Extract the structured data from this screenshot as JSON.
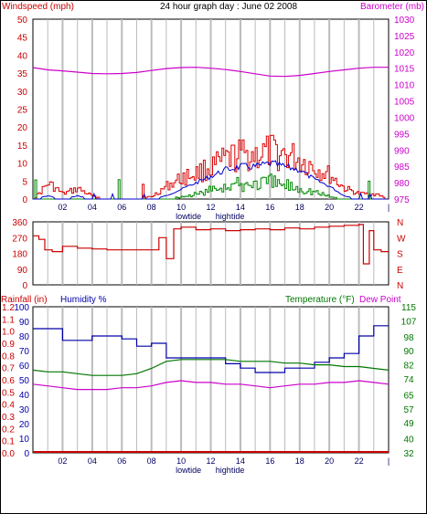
{
  "header": {
    "title": "24 hour graph day : June 02 2008",
    "left_label": "Windspeed (mph)",
    "right_label": "Barometer (mb)"
  },
  "labels": {
    "rain": "Rainfall (in)",
    "humidity": "Humidity %",
    "temperature": "Temperature (°F)",
    "dewpoint": "Dew Point"
  },
  "tide": {
    "low": "lowtide",
    "high": "hightide"
  },
  "colors": {
    "windspeed": "#dd0000",
    "gust": "#dd0000",
    "wind_avg": "#0000cc",
    "wind_low": "#008800",
    "barometer": "#cc00cc",
    "direction": "#cc0000",
    "humidity": "#0000aa",
    "temperature": "#007700",
    "dewpoint": "#cc00cc",
    "rain": "#cc0000",
    "grid": "#bbbbbb"
  },
  "chart_data": [
    {
      "type": "line",
      "name": "wind-barometer",
      "x_ticks": [
        "02",
        "04",
        "06",
        "08",
        "10",
        "12",
        "14",
        "16",
        "18",
        "20",
        "22",
        "|"
      ],
      "y_left": {
        "label": "Windspeed (mph)",
        "ticks": [
          0,
          5,
          10,
          15,
          20,
          25,
          30,
          35,
          40,
          45,
          50
        ],
        "range": [
          0,
          50
        ]
      },
      "y_right": {
        "label": "Barometer (mb)",
        "ticks": [
          975,
          980,
          985,
          990,
          995,
          1000,
          1005,
          1010,
          1015,
          1020,
          1025,
          1030
        ],
        "range": [
          975,
          1030
        ]
      },
      "hours": [
        0,
        1,
        2,
        3,
        4,
        5,
        6,
        7,
        8,
        9,
        10,
        11,
        12,
        13,
        14,
        15,
        16,
        17,
        18,
        19,
        20,
        21,
        22,
        23,
        24
      ],
      "barometer": [
        1015.2,
        1014.5,
        1014.2,
        1013.8,
        1013.4,
        1013.3,
        1013.4,
        1013.7,
        1014.3,
        1014.9,
        1015.2,
        1015.3,
        1015.0,
        1014.6,
        1014.0,
        1013.3,
        1012.6,
        1012.5,
        1012.8,
        1013.4,
        1014.0,
        1014.5,
        1015.0,
        1015.3,
        1015.3
      ],
      "wind_gust": [
        0,
        6,
        2,
        4,
        1,
        0,
        0,
        0,
        1,
        5,
        8,
        10,
        12,
        15,
        17,
        17,
        18,
        17,
        15,
        12,
        9,
        4,
        2,
        2,
        0
      ],
      "wind_avg": [
        0,
        1,
        0,
        1,
        0,
        0,
        0,
        0,
        0,
        1,
        3,
        5,
        7,
        9,
        10,
        10,
        11,
        10,
        9,
        6,
        4,
        1,
        0,
        0,
        0
      ],
      "wind_low": [
        0,
        0,
        0,
        0,
        0,
        0,
        0,
        0,
        0,
        0,
        1,
        2,
        4,
        6,
        6,
        7,
        7,
        6,
        5,
        3,
        1,
        0,
        0,
        0,
        0
      ]
    },
    {
      "type": "line",
      "name": "wind-direction",
      "y_ticks": [
        0,
        90,
        180,
        270,
        360
      ],
      "y_range": [
        0,
        360
      ],
      "compass": [
        "N",
        "W",
        "S",
        "E",
        "N"
      ],
      "hours": [
        0,
        0.4,
        0.8,
        1.3,
        2,
        3,
        4,
        5,
        6,
        7,
        8,
        8.5,
        9,
        9.5,
        10,
        11,
        12,
        13,
        14,
        15,
        16,
        17,
        18,
        19,
        20,
        21,
        22,
        22.3,
        22.7,
        23,
        23.5,
        24
      ],
      "direction": [
        280,
        260,
        200,
        190,
        220,
        210,
        205,
        200,
        200,
        200,
        200,
        270,
        150,
        320,
        330,
        315,
        320,
        310,
        315,
        320,
        315,
        325,
        320,
        330,
        335,
        340,
        345,
        120,
        310,
        200,
        190,
        190
      ]
    },
    {
      "type": "line",
      "name": "rain-humidity-temperature",
      "y_left_rain": {
        "label": "Rainfall (in)",
        "ticks": [
          0.0,
          0.1,
          0.2,
          0.3,
          0.4,
          0.5,
          0.6,
          0.7,
          0.8,
          0.9,
          1.0,
          1.1,
          1.2
        ],
        "range": [
          0,
          1.2
        ]
      },
      "y_left_humidity": {
        "label": "Humidity %",
        "ticks": [
          0,
          10,
          20,
          30,
          40,
          50,
          60,
          70,
          80,
          90,
          100
        ],
        "range": [
          0,
          100
        ]
      },
      "y_right": {
        "label": "Temperature (°F)",
        "ticks": [
          32,
          40,
          49,
          57,
          65,
          74,
          82,
          90,
          98,
          107,
          115
        ],
        "range": [
          32,
          115
        ]
      },
      "hours": [
        0,
        1,
        2,
        3,
        4,
        5,
        6,
        7,
        8,
        9,
        10,
        11,
        12,
        13,
        14,
        15,
        16,
        17,
        18,
        19,
        20,
        21,
        22,
        23,
        24
      ],
      "humidity": [
        85,
        85,
        77,
        77,
        80,
        80,
        78,
        73,
        75,
        65,
        65,
        65,
        65,
        61,
        58,
        55,
        55,
        58,
        58,
        62,
        65,
        68,
        80,
        87,
        87
      ],
      "temperature": [
        79,
        78,
        78,
        77,
        76,
        76,
        76,
        77,
        80,
        84,
        85,
        85,
        85,
        85,
        84,
        84,
        84,
        83,
        83,
        82,
        82,
        81,
        81,
        80,
        79
      ],
      "dewpoint": [
        71,
        70,
        69,
        68,
        68,
        68,
        69,
        69,
        70,
        72,
        73,
        72,
        72,
        71,
        71,
        70,
        69,
        70,
        71,
        71,
        72,
        72,
        73,
        72,
        71
      ],
      "rain": [
        0,
        0,
        0,
        0,
        0,
        0,
        0,
        0,
        0,
        0,
        0,
        0,
        0,
        0,
        0,
        0,
        0,
        0,
        0,
        0,
        0,
        0,
        0,
        0,
        0
      ]
    }
  ]
}
